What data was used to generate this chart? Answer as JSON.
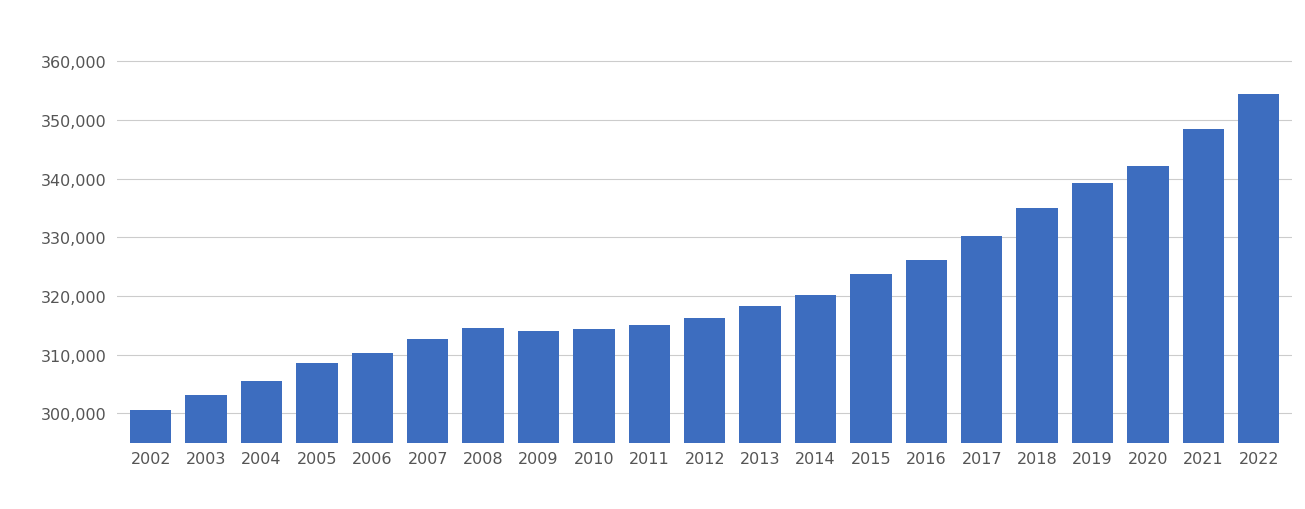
{
  "years": [
    2002,
    2003,
    2004,
    2005,
    2006,
    2007,
    2008,
    2009,
    2010,
    2011,
    2012,
    2013,
    2014,
    2015,
    2016,
    2017,
    2018,
    2019,
    2020,
    2021,
    2022
  ],
  "values": [
    300600,
    303200,
    305500,
    308500,
    310200,
    312700,
    314500,
    314100,
    314400,
    315100,
    316200,
    318300,
    320100,
    323700,
    326200,
    330200,
    335000,
    339200,
    342100,
    348500,
    354500
  ],
  "bar_color": "#3d6dbf",
  "background_color": "#ffffff",
  "ylim": [
    295000,
    368000
  ],
  "yticks": [
    300000,
    310000,
    320000,
    330000,
    340000,
    350000,
    360000
  ],
  "grid_color": "#cccccc",
  "tick_color": "#555555",
  "tick_fontsize": 11.5,
  "bar_width": 0.75
}
